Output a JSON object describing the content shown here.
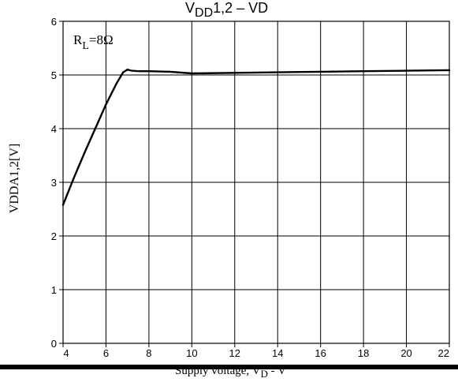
{
  "chart_data": {
    "type": "line",
    "title": {
      "main": "V",
      "sub": "DD",
      "tail": "1,2  –  VD"
    },
    "ylabel": "VDDA1,2[V]",
    "xlabel": {
      "main": "Supply voltage, V",
      "sub": "D",
      "tail": " - V"
    },
    "annotation": {
      "main": "R",
      "sub": "L",
      "tail": "=8Ω"
    },
    "xlim": [
      4,
      22
    ],
    "ylim": [
      0,
      6
    ],
    "x_ticks": [
      "4",
      "6",
      "8",
      "10",
      "12",
      "14",
      "16",
      "18",
      "20",
      "22"
    ],
    "y_ticks": [
      "0",
      "1",
      "2",
      "3",
      "4",
      "5",
      "6"
    ],
    "grid": true,
    "series": [
      {
        "x": [
          4.0,
          4.5,
          5.0,
          5.5,
          6.0,
          6.5,
          6.8,
          7.0,
          7.2,
          7.5,
          8.0,
          9.0,
          10.0,
          12.0,
          14.0,
          16.0,
          18.0,
          20.0,
          22.0
        ],
        "y": [
          2.58,
          3.08,
          3.55,
          4.0,
          4.45,
          4.85,
          5.05,
          5.1,
          5.08,
          5.07,
          5.07,
          5.06,
          5.03,
          5.04,
          5.05,
          5.06,
          5.07,
          5.08,
          5.09
        ]
      }
    ]
  }
}
